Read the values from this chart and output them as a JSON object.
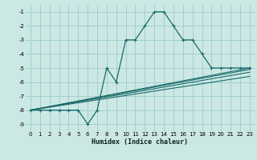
{
  "xlabel": "Humidex (Indice chaleur)",
  "ylabel": "",
  "bg_color": "#cce8e4",
  "grid_color": "#99cccc",
  "line_color": "#1a6b6b",
  "xlim": [
    -0.5,
    23.5
  ],
  "ylim": [
    -9.5,
    -0.5
  ],
  "yticks": [
    -1,
    -2,
    -3,
    -4,
    -5,
    -6,
    -7,
    -8,
    -9
  ],
  "xticks": [
    0,
    1,
    2,
    3,
    4,
    5,
    6,
    7,
    8,
    9,
    10,
    11,
    12,
    13,
    14,
    15,
    16,
    17,
    18,
    19,
    20,
    21,
    22,
    23
  ],
  "main_line": {
    "x": [
      0,
      1,
      2,
      3,
      4,
      5,
      6,
      7,
      8,
      9,
      10,
      11,
      12,
      13,
      14,
      15,
      16,
      17,
      18,
      19,
      20,
      21,
      22,
      23
    ],
    "y": [
      -8,
      -8,
      -8,
      -8,
      -8,
      -8,
      -9,
      -8,
      -5,
      -6,
      -3,
      -3,
      -2,
      -1,
      -1,
      -2,
      -3,
      -3,
      -4,
      -5,
      -5,
      -5,
      -5,
      -5
    ]
  },
  "trend_lines": [
    {
      "x": [
        0,
        23
      ],
      "y": [
        -8,
        -5.0
      ]
    },
    {
      "x": [
        0,
        23
      ],
      "y": [
        -8,
        -5.1
      ]
    },
    {
      "x": [
        0,
        23
      ],
      "y": [
        -8,
        -5.3
      ]
    },
    {
      "x": [
        0,
        23
      ],
      "y": [
        -8,
        -5.6
      ]
    }
  ]
}
